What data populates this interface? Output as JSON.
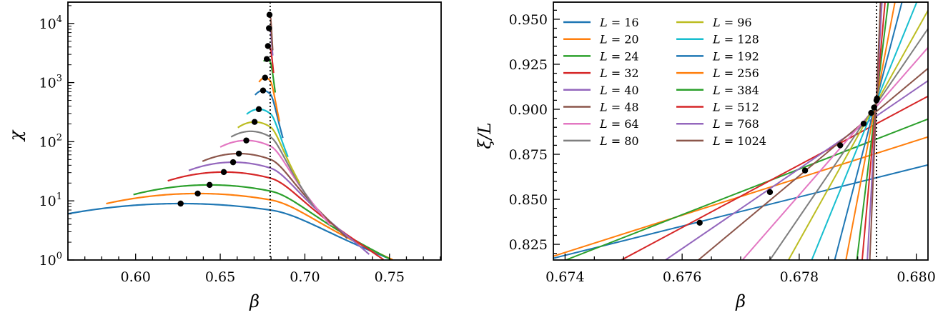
{
  "chart_data": [
    {
      "type": "line",
      "title": "",
      "xlabel": "β",
      "ylabel": "χ",
      "yscale": "log",
      "xlim": [
        0.56,
        0.7805
      ],
      "ylim_log10": [
        0,
        4.36
      ],
      "xticks": [
        "0.60",
        "0.65",
        "0.70",
        "0.75"
      ],
      "yticks_base": "10",
      "yticks_exponent": [
        "0",
        "1",
        "2",
        "3",
        "4"
      ],
      "critical_beta": 0.6795,
      "series": [
        {
          "L": 16,
          "start": 0.56,
          "end": 0.7805,
          "peak_beta": 0.6266,
          "peak_chi": 9.0,
          "marked": true
        },
        {
          "L": 20,
          "start": 0.5826,
          "end": 0.7805,
          "peak_beta": 0.6367,
          "peak_chi": 13.3,
          "marked": true
        },
        {
          "L": 24,
          "start": 0.5987,
          "end": 0.7805,
          "peak_beta": 0.6437,
          "peak_chi": 18.6,
          "marked": true
        },
        {
          "L": 32,
          "start": 0.619,
          "end": 0.7553,
          "peak_beta": 0.6521,
          "peak_chi": 30.7,
          "marked": true
        },
        {
          "L": 40,
          "start": 0.6314,
          "end": 0.738,
          "peak_beta": 0.6576,
          "peak_chi": 45,
          "marked": true
        },
        {
          "L": 48,
          "start": 0.6395,
          "end": 0.725,
          "peak_beta": 0.661,
          "peak_chi": 63,
          "marked": true
        },
        {
          "L": 64,
          "start": 0.65,
          "end": 0.715,
          "peak_beta": 0.6654,
          "peak_chi": 105,
          "marked": true
        },
        {
          "L": 80,
          "start": 0.6564,
          "end": 0.705,
          "peak_beta": 0.668,
          "peak_chi": 150,
          "marked": false
        },
        {
          "L": 96,
          "start": 0.6604,
          "end": 0.697,
          "peak_beta": 0.6703,
          "peak_chi": 216,
          "marked": true
        },
        {
          "L": 128,
          "start": 0.6656,
          "end": 0.69,
          "peak_beta": 0.6728,
          "peak_chi": 355,
          "marked": true
        },
        {
          "L": 192,
          "start": 0.6706,
          "end": 0.687,
          "peak_beta": 0.6753,
          "peak_chi": 735,
          "marked": true
        },
        {
          "L": 256,
          "start": 0.6729,
          "end": 0.685,
          "peak_beta": 0.6765,
          "peak_chi": 1210,
          "marked": true
        },
        {
          "L": 384,
          "start": 0.6757,
          "end": 0.6825,
          "peak_beta": 0.6775,
          "peak_chi": 2500,
          "marked": true
        },
        {
          "L": 512,
          "start": 0.677,
          "end": 0.6815,
          "peak_beta": 0.6782,
          "peak_chi": 4150,
          "marked": true
        },
        {
          "L": 768,
          "start": 0.6778,
          "end": 0.681,
          "peak_beta": 0.6788,
          "peak_chi": 8300,
          "marked": true
        },
        {
          "L": 1024,
          "start": 0.6785,
          "end": 0.681,
          "peak_beta": 0.6791,
          "peak_chi": 14000,
          "marked": true
        }
      ]
    },
    {
      "type": "line",
      "title": "",
      "xlabel": "β",
      "ylabel": "ξ/L",
      "xlim": [
        0.6738,
        0.6802
      ],
      "ylim": [
        0.8163,
        0.9595
      ],
      "xticks": [
        "0.674",
        "0.676",
        "0.678",
        "0.680"
      ],
      "yticks": [
        "0.825",
        "0.850",
        "0.875",
        "0.900",
        "0.925",
        "0.950"
      ],
      "critical_beta": 0.67932,
      "legend_position": "upper-left",
      "series": [
        {
          "label": "L = 16",
          "L": 16,
          "color": "#1f77b4"
        },
        {
          "label": "L = 20",
          "L": 20,
          "color": "#ff7f0e"
        },
        {
          "label": "L = 24",
          "L": 24,
          "color": "#2ca02c"
        },
        {
          "label": "L = 32",
          "L": 32,
          "color": "#d62728"
        },
        {
          "label": "L = 40",
          "L": 40,
          "color": "#9467bd"
        },
        {
          "label": "L = 48",
          "L": 48,
          "color": "#8c564b"
        },
        {
          "label": "L = 64",
          "L": 64,
          "color": "#e377c2"
        },
        {
          "label": "L = 80",
          "L": 80,
          "color": "#7f7f7f"
        },
        {
          "label": "L = 96",
          "L": 96,
          "color": "#bcbd22"
        },
        {
          "label": "L = 128",
          "L": 128,
          "color": "#17becf"
        },
        {
          "label": "L = 192",
          "L": 192,
          "color": "#1f77b4"
        },
        {
          "label": "L = 256",
          "L": 256,
          "color": "#ff7f0e"
        },
        {
          "label": "L = 384",
          "L": 384,
          "color": "#2ca02c"
        },
        {
          "label": "L = 512",
          "L": 512,
          "color": "#d62728"
        },
        {
          "label": "L = 768",
          "L": 768,
          "color": "#9467bd"
        },
        {
          "label": "L = 1024",
          "L": 1024,
          "color": "#8c564b"
        }
      ],
      "crossings": [
        [
          0.6763,
          0.837
        ],
        [
          0.6775,
          0.854
        ],
        [
          0.6781,
          0.866
        ],
        [
          0.6787,
          0.88
        ],
        [
          0.6791,
          0.892
        ],
        [
          0.67923,
          0.898
        ],
        [
          0.67928,
          0.901
        ],
        [
          0.67932,
          0.905
        ],
        [
          0.67933,
          0.906
        ]
      ]
    }
  ]
}
